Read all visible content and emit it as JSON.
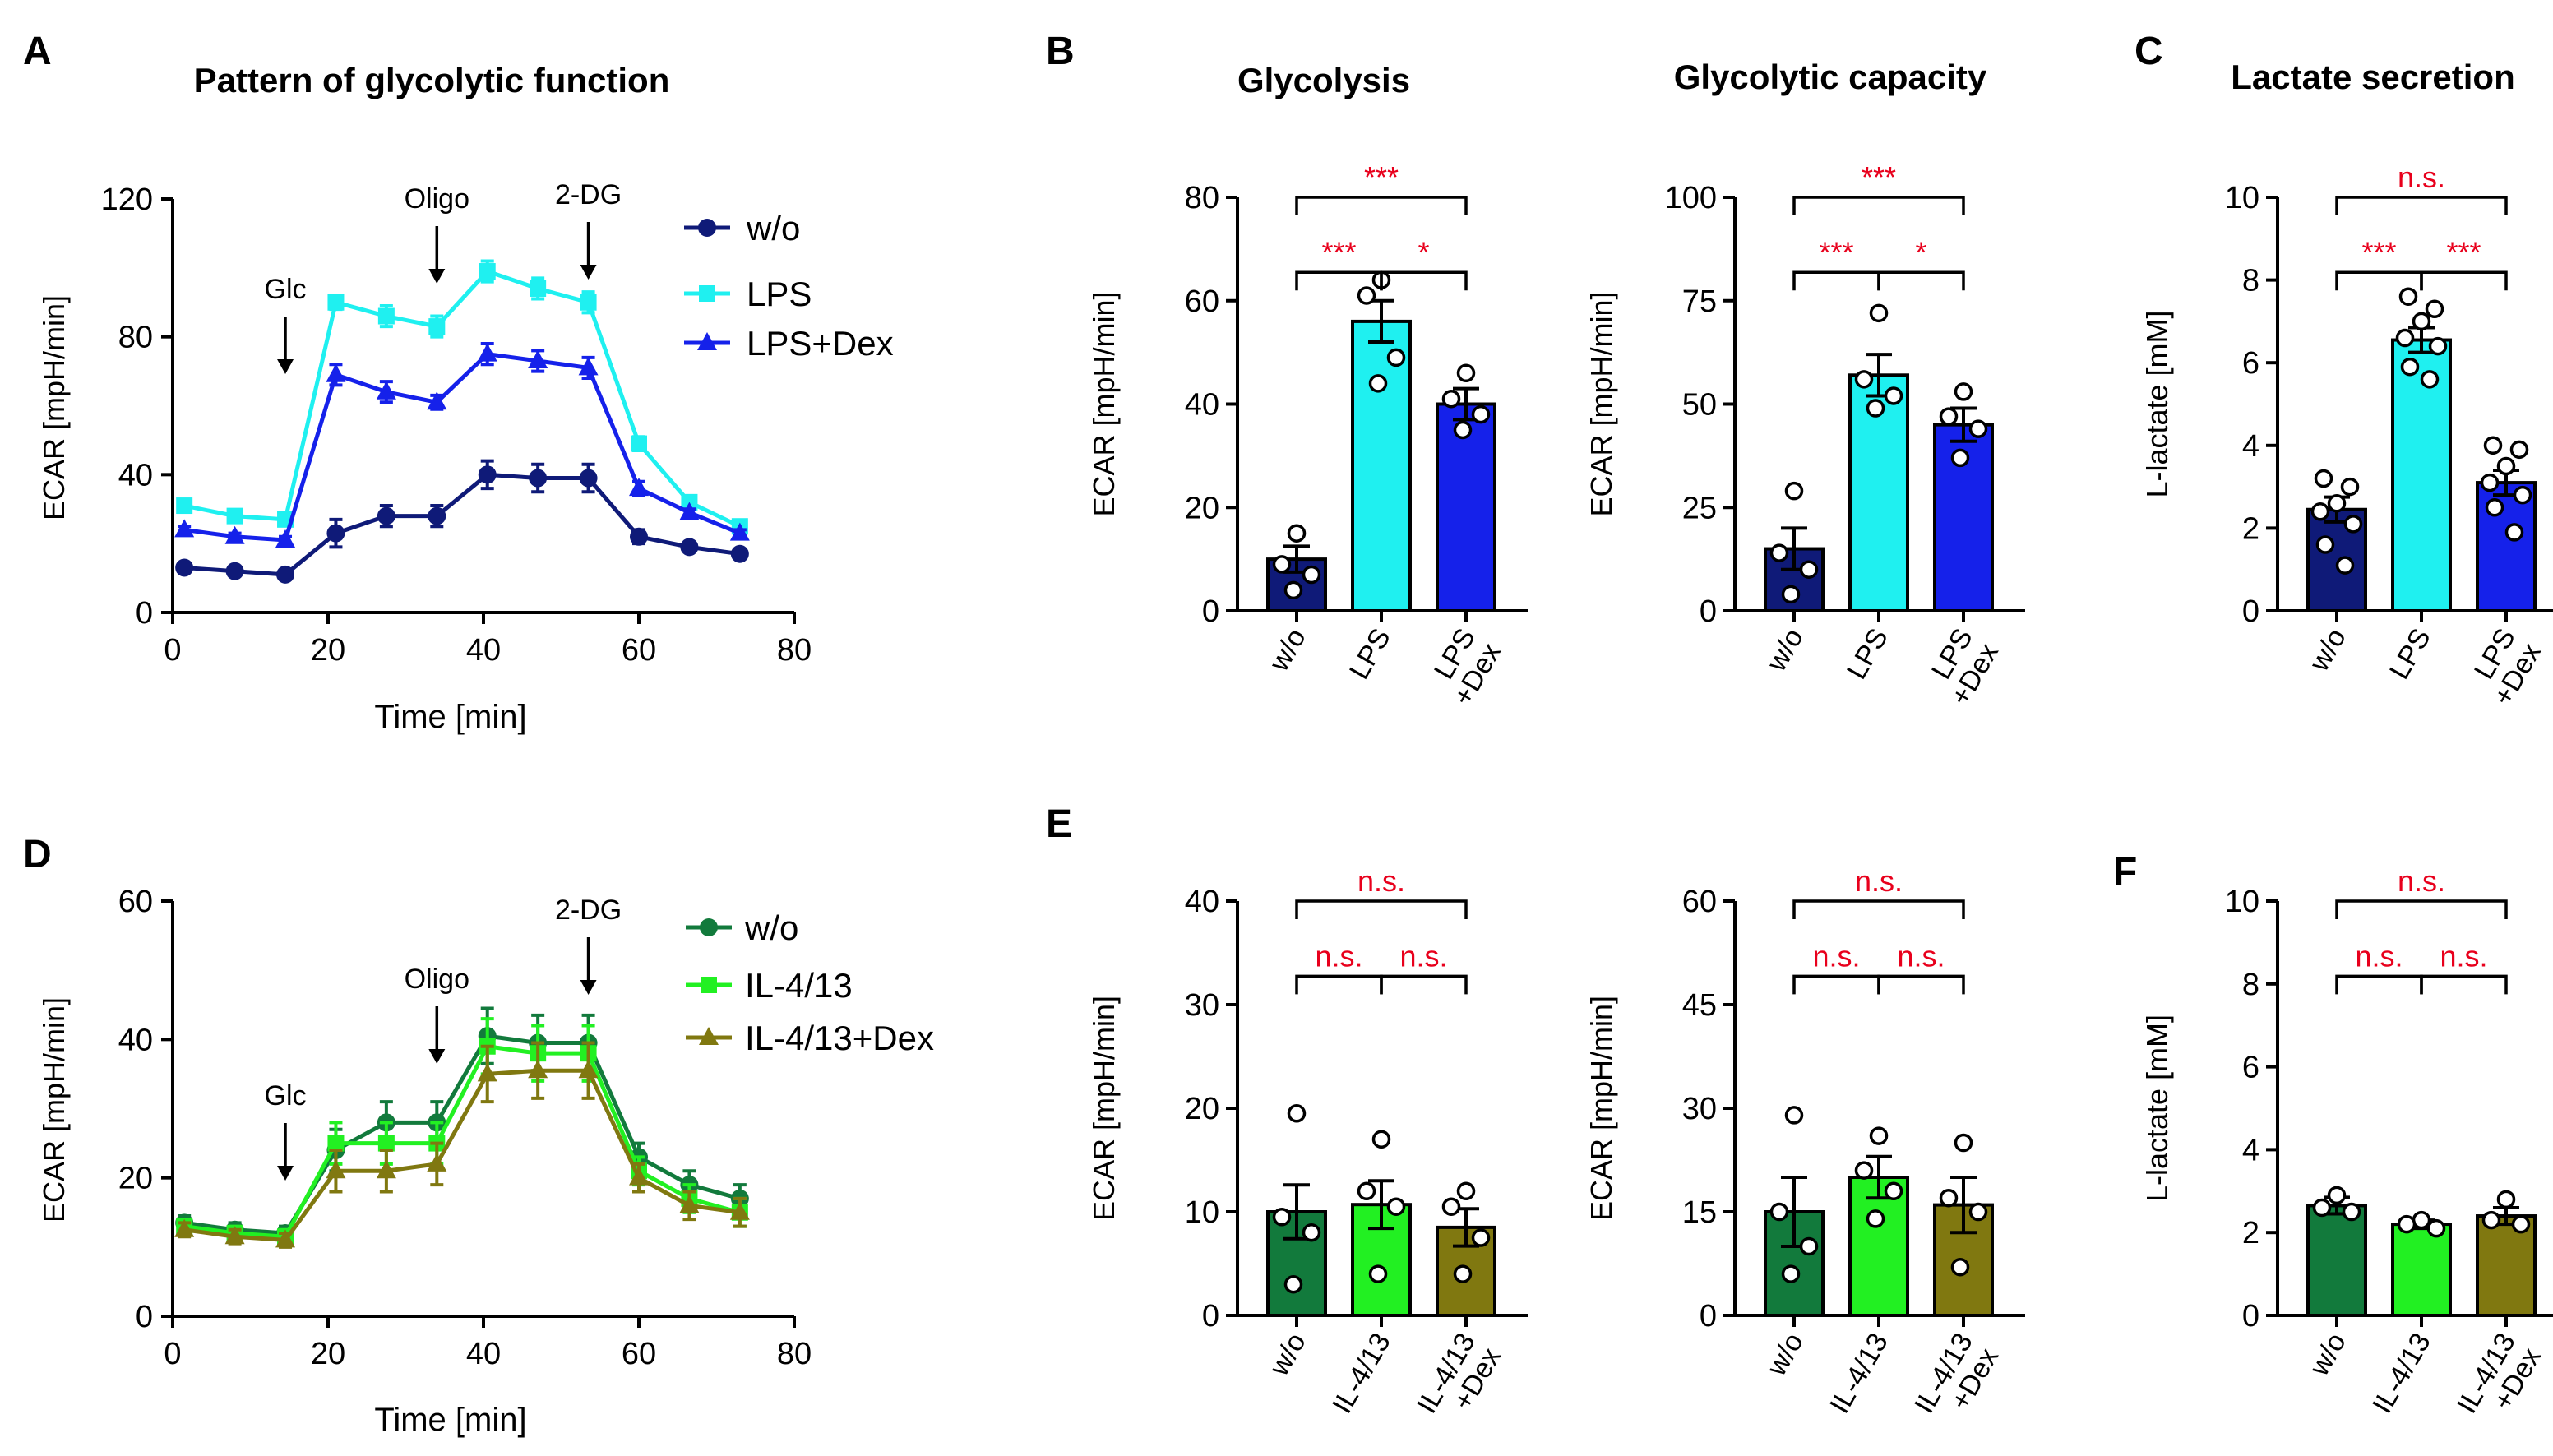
{
  "panel_labels": {
    "A": "A",
    "B": "B",
    "C": "C",
    "D": "D",
    "E": "E",
    "F": "F"
  },
  "colors": {
    "wo_lps": "#0f1a78",
    "lps": "#1ff0f0",
    "lps_dex": "#1521ea",
    "wo_il": "#127a3c",
    "il": "#22f022",
    "il_dex": "#807810",
    "sig_red": "#e8001c"
  },
  "chart_data": [
    {
      "id": "A",
      "type": "line",
      "title": "Pattern of glycolytic function",
      "xlabel": "Time [min]",
      "ylabel": "ECAR [mpH/min]",
      "xlim": [
        0,
        80
      ],
      "ylim": [
        0,
        120
      ],
      "xticks": [
        0,
        20,
        40,
        60,
        80
      ],
      "yticks": [
        0,
        40,
        80,
        120
      ],
      "x": [
        1.5,
        8,
        14.5,
        21,
        27.5,
        34,
        40.5,
        47,
        53.5,
        60,
        66.5,
        73
      ],
      "series": [
        {
          "name": "w/o",
          "color": "#0f1a78",
          "marker": "circle",
          "values": [
            13,
            12,
            11,
            23,
            28,
            28,
            40,
            39,
            39,
            22,
            19,
            17
          ],
          "err": [
            1,
            1,
            1,
            4,
            3,
            3,
            4,
            4,
            4,
            2,
            1,
            1
          ]
        },
        {
          "name": "LPS",
          "color": "#1ff0f0",
          "marker": "square",
          "values": [
            31,
            28,
            27,
            90,
            86,
            83,
            99,
            94,
            90,
            49,
            32,
            25
          ],
          "err": [
            1,
            1,
            1,
            2,
            3,
            3,
            3,
            3,
            3,
            2,
            1,
            1
          ]
        },
        {
          "name": "LPS+Dex",
          "color": "#1521ea",
          "marker": "triangle",
          "values": [
            24,
            22,
            21,
            69,
            64,
            61,
            75,
            73,
            71,
            36,
            29,
            23
          ],
          "err": [
            1,
            1,
            1,
            3,
            3,
            2,
            3,
            3,
            3,
            2,
            1,
            1
          ]
        }
      ],
      "annotations": [
        {
          "text": "Glc",
          "x": 14.5
        },
        {
          "text": "Oligo",
          "x": 34
        },
        {
          "text": "2-DG",
          "x": 53.5
        }
      ]
    },
    {
      "id": "B1",
      "type": "bar",
      "title": "Glycolysis",
      "ylabel": "ECAR [mpH/min]",
      "ylim": [
        0,
        80
      ],
      "yticks": [
        0,
        20,
        40,
        60,
        80
      ],
      "categories": [
        "w/o",
        "LPS",
        "LPS\n+Dex"
      ],
      "values": [
        10,
        56,
        40
      ],
      "err": [
        2.5,
        4,
        3
      ],
      "colors": [
        "#0f1a78",
        "#1ff0f0",
        "#1521ea"
      ],
      "points": [
        [
          15,
          9,
          7,
          4
        ],
        [
          64,
          61,
          49,
          44
        ],
        [
          46,
          41,
          38,
          35
        ]
      ],
      "significance": [
        {
          "pair": [
            0,
            1
          ],
          "text": "***"
        },
        {
          "pair": [
            1,
            2
          ],
          "text": "*"
        },
        {
          "pair": [
            0,
            2
          ],
          "text": "***"
        }
      ]
    },
    {
      "id": "B2",
      "type": "bar",
      "title": "Glycolytic capacity",
      "ylabel": "ECAR [mpH/min]",
      "ylim": [
        0,
        100
      ],
      "yticks": [
        0,
        25,
        50,
        75,
        100
      ],
      "categories": [
        "w/o",
        "LPS",
        "LPS\n+Dex"
      ],
      "values": [
        15,
        57,
        45
      ],
      "err": [
        5,
        5,
        4
      ],
      "colors": [
        "#0f1a78",
        "#1ff0f0",
        "#1521ea"
      ],
      "points": [
        [
          29,
          14,
          10,
          4
        ],
        [
          72,
          56,
          52,
          49
        ],
        [
          53,
          47,
          44,
          37
        ]
      ],
      "significance": [
        {
          "pair": [
            0,
            1
          ],
          "text": "***"
        },
        {
          "pair": [
            1,
            2
          ],
          "text": "*"
        },
        {
          "pair": [
            0,
            2
          ],
          "text": "***"
        }
      ]
    },
    {
      "id": "C",
      "type": "bar",
      "title": "Lactate secretion",
      "ylabel": "L-lactate [mM]",
      "ylim": [
        0,
        10
      ],
      "yticks": [
        0,
        2,
        4,
        6,
        8,
        10
      ],
      "categories": [
        "w/o",
        "LPS",
        "LPS\n+Dex"
      ],
      "values": [
        2.45,
        6.55,
        3.1
      ],
      "err": [
        0.3,
        0.3,
        0.3
      ],
      "colors": [
        "#0f1a78",
        "#1ff0f0",
        "#1521ea"
      ],
      "points": [
        [
          3.2,
          3.0,
          2.6,
          2.4,
          2.1,
          1.6,
          1.1
        ],
        [
          7.6,
          7.3,
          7.0,
          6.6,
          6.4,
          5.9,
          5.6
        ],
        [
          4.0,
          3.9,
          3.5,
          3.1,
          2.8,
          2.5,
          1.9
        ]
      ],
      "significance": [
        {
          "pair": [
            0,
            1
          ],
          "text": "***"
        },
        {
          "pair": [
            1,
            2
          ],
          "text": "***"
        },
        {
          "pair": [
            0,
            2
          ],
          "text": "n.s."
        }
      ]
    },
    {
      "id": "D",
      "type": "line",
      "title": "",
      "xlabel": "Time [min]",
      "ylabel": "ECAR [mpH/min]",
      "xlim": [
        0,
        80
      ],
      "ylim": [
        0,
        60
      ],
      "xticks": [
        0,
        20,
        40,
        60,
        80
      ],
      "yticks": [
        0,
        20,
        40,
        60
      ],
      "x": [
        1.5,
        8,
        14.5,
        21,
        27.5,
        34,
        40.5,
        47,
        53.5,
        60,
        66.5,
        73
      ],
      "series": [
        {
          "name": "w/o",
          "color": "#127a3c",
          "marker": "circle",
          "values": [
            13.5,
            12.5,
            12,
            24,
            28,
            28,
            40.5,
            39.5,
            39.5,
            23,
            19,
            17
          ],
          "err": [
            1,
            1,
            1,
            3,
            3,
            3,
            4,
            4,
            4,
            2,
            2,
            2
          ]
        },
        {
          "name": "IL-4/13",
          "color": "#22f022",
          "marker": "square",
          "values": [
            13,
            12,
            11.5,
            25,
            25,
            25,
            39,
            38,
            38,
            21,
            17,
            15
          ],
          "err": [
            1,
            1,
            1,
            3,
            3,
            3,
            4,
            4,
            4,
            2,
            2,
            2
          ]
        },
        {
          "name": "IL-4/13+Dex",
          "color": "#807810",
          "marker": "triangle",
          "values": [
            12.5,
            11.5,
            11,
            21,
            21,
            22,
            35,
            35.5,
            35.5,
            20,
            16,
            15
          ],
          "err": [
            1,
            1,
            1,
            3,
            3,
            3,
            4,
            4,
            4,
            2,
            2,
            2
          ]
        }
      ],
      "annotations": [
        {
          "text": "Glc",
          "x": 14.5
        },
        {
          "text": "Oligo",
          "x": 34
        },
        {
          "text": "2-DG",
          "x": 53.5
        }
      ]
    },
    {
      "id": "E1",
      "type": "bar",
      "title": "",
      "ylabel": "ECAR [mpH/min]",
      "ylim": [
        0,
        40
      ],
      "yticks": [
        0,
        10,
        20,
        30,
        40
      ],
      "categories": [
        "w/o",
        "IL-4/13",
        "IL-4/13\n+Dex"
      ],
      "values": [
        10,
        10.7,
        8.5
      ],
      "err": [
        2.6,
        2.3,
        1.8
      ],
      "colors": [
        "#127a3c",
        "#22f022",
        "#807810"
      ],
      "points": [
        [
          19.5,
          9.5,
          8,
          3
        ],
        [
          17,
          12,
          10.5,
          4
        ],
        [
          12,
          10.5,
          7.5,
          4
        ]
      ],
      "significance": [
        {
          "pair": [
            0,
            1
          ],
          "text": "n.s."
        },
        {
          "pair": [
            1,
            2
          ],
          "text": "n.s."
        },
        {
          "pair": [
            0,
            2
          ],
          "text": "n.s."
        }
      ]
    },
    {
      "id": "E2",
      "type": "bar",
      "title": "",
      "ylabel": "ECAR [mpH/min]",
      "ylim": [
        0,
        60
      ],
      "yticks": [
        0,
        15,
        30,
        45,
        60
      ],
      "categories": [
        "w/o",
        "IL-4/13",
        "IL-4/13\n+Dex"
      ],
      "values": [
        15,
        20,
        16
      ],
      "err": [
        5,
        3,
        4
      ],
      "colors": [
        "#127a3c",
        "#22f022",
        "#807810"
      ],
      "points": [
        [
          29,
          15,
          10,
          6
        ],
        [
          26,
          21,
          18,
          14
        ],
        [
          25,
          17,
          15,
          7
        ]
      ],
      "significance": [
        {
          "pair": [
            0,
            1
          ],
          "text": "n.s."
        },
        {
          "pair": [
            1,
            2
          ],
          "text": "n.s."
        },
        {
          "pair": [
            0,
            2
          ],
          "text": "n.s."
        }
      ]
    },
    {
      "id": "F",
      "type": "bar",
      "title": "",
      "ylabel": "L-lactate [mM]",
      "ylim": [
        0,
        10
      ],
      "yticks": [
        0,
        2,
        4,
        6,
        8,
        10
      ],
      "categories": [
        "w/o",
        "IL-4/13",
        "IL-4/13\n+Dex"
      ],
      "values": [
        2.65,
        2.2,
        2.4
      ],
      "err": [
        0.2,
        0.1,
        0.2
      ],
      "colors": [
        "#127a3c",
        "#22f022",
        "#807810"
      ],
      "points": [
        [
          2.9,
          2.6,
          2.5
        ],
        [
          2.3,
          2.2,
          2.1
        ],
        [
          2.8,
          2.3,
          2.2
        ]
      ],
      "significance": [
        {
          "pair": [
            0,
            1
          ],
          "text": "n.s."
        },
        {
          "pair": [
            1,
            2
          ],
          "text": "n.s."
        },
        {
          "pair": [
            0,
            2
          ],
          "text": "n.s."
        }
      ]
    }
  ]
}
